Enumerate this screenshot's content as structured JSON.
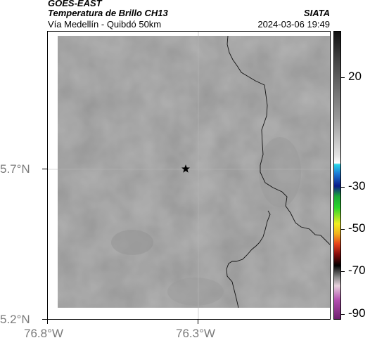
{
  "header": {
    "title_line1": "GOES-EAST",
    "title_line2": "Temperatura de Brillo CH13",
    "subtitle": "Vía Medellín - Quibdó 50km",
    "organization": "SIATA",
    "timestamp": "2024-03-06 19:49"
  },
  "map": {
    "lat_labels": [
      "5.7°N",
      "5.2°N"
    ],
    "lon_labels": [
      "76.8°W",
      "76.3°W"
    ],
    "marker": "star-icon",
    "colors": {
      "background_gray": "#858585",
      "border": "#000000"
    }
  },
  "colorbar": {
    "tick_labels": [
      "20",
      "-30",
      "-50",
      "-70",
      "-90"
    ]
  }
}
